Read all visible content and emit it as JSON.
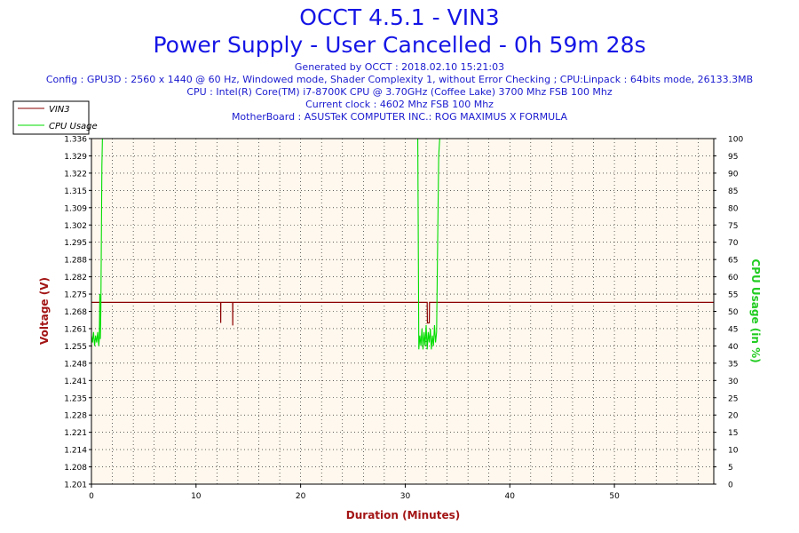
{
  "header": {
    "title": "OCCT 4.5.1 - VIN3",
    "subtitle": "Power Supply - User Cancelled - 0h 59m 28s",
    "generated": "Generated by OCCT : 2018.02.10 15:21:03",
    "config": "Config : GPU3D : 2560 x 1440 @ 60 Hz, Windowed mode, Shader Complexity 1, without Error Checking ; CPU:Linpack : 64bits mode, 26133.3MB",
    "cpu": "CPU : Intel(R) Core(TM) i7-8700K CPU @ 3.70GHz (Coffee Lake) 3700 Mhz FSB 100 Mhz",
    "clock": "Current clock : 4602 Mhz FSB 100 Mhz",
    "motherboard": "MotherBoard : ASUSTeK COMPUTER INC.: ROG MAXIMUS X FORMULA"
  },
  "colors": {
    "vin3": "#8b0000",
    "cpu_usage": "#00dd00",
    "plot_background": "#fff8ee",
    "grid": "#000000",
    "title": "#1515e6"
  },
  "chart_data": {
    "type": "line",
    "xlabel": "Duration (Minutes)",
    "ylabel": "Voltage (V)",
    "ylabel_right": "CPU Usage (in %)",
    "xlim": [
      0,
      59.5
    ],
    "ylim": [
      1.201,
      1.336
    ],
    "ylim_right": [
      0,
      100
    ],
    "x_ticks": [
      0,
      10,
      20,
      30,
      40,
      50
    ],
    "y_ticks": [
      "1.201",
      "1.208",
      "1.214",
      "1.221",
      "1.228",
      "1.235",
      "1.241",
      "1.248",
      "1.255",
      "1.261",
      "1.268",
      "1.275",
      "1.282",
      "1.288",
      "1.295",
      "1.302",
      "1.309",
      "1.315",
      "1.322",
      "1.329",
      "1.336"
    ],
    "y_ticks_right": [
      0,
      5,
      10,
      15,
      20,
      25,
      30,
      35,
      40,
      45,
      50,
      55,
      60,
      65,
      70,
      75,
      80,
      85,
      90,
      95,
      100
    ],
    "grid": true,
    "legend_position": "top-left",
    "series": [
      {
        "name": "VIN3",
        "axis": "left",
        "x": [
          0,
          12.35,
          12.36,
          12.37,
          13.5,
          13.51,
          13.52,
          32.1,
          32.12,
          32.2,
          32.3,
          32.32,
          59.5
        ],
        "y": [
          1.272,
          1.272,
          1.264,
          1.272,
          1.272,
          1.263,
          1.272,
          1.272,
          1.264,
          1.264,
          1.264,
          1.272,
          1.272
        ]
      },
      {
        "name": "CPU Usage",
        "axis": "right",
        "x": [
          0,
          0.1,
          0.2,
          0.3,
          0.4,
          0.5,
          0.6,
          0.7,
          0.75,
          0.8,
          0.85,
          0.9,
          1.0,
          1.05,
          31.2,
          31.3,
          31.4,
          31.5,
          31.6,
          31.7,
          31.8,
          31.9,
          32.0,
          32.1,
          32.2,
          32.3,
          32.4,
          32.5,
          32.6,
          32.7,
          32.8,
          32.9,
          33.0,
          33.1,
          33.2,
          33.3,
          59.5
        ],
        "y": [
          43,
          41,
          44,
          40,
          43,
          41,
          44,
          40,
          42,
          55,
          42,
          50,
          92,
          100,
          100,
          39,
          43,
          40,
          45,
          39,
          44,
          40,
          46,
          39,
          44,
          41,
          45,
          39,
          43,
          40,
          46,
          41,
          44,
          70,
          95,
          100,
          100
        ]
      }
    ]
  }
}
